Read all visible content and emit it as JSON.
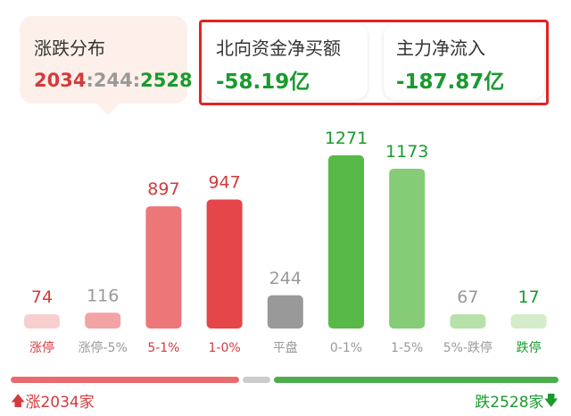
{
  "distribution": {
    "title": "涨跌分布",
    "up": "2034",
    "flat": "244",
    "down": "2528",
    "sep": ":"
  },
  "northbound": {
    "label": "北向资金净买额",
    "value": "-58.19亿"
  },
  "main_flow": {
    "label": "主力净流入",
    "value": "-187.87亿"
  },
  "chart_data": {
    "type": "bar",
    "categories": [
      "涨停",
      "涨停-5%",
      "5-1%",
      "1-0%",
      "平盘",
      "0-1%",
      "1-5%",
      "5%-跌停",
      "跌停"
    ],
    "values": [
      74,
      116,
      897,
      947,
      244,
      1271,
      1173,
      67,
      17
    ],
    "value_labels": [
      "74",
      "116",
      "897",
      "947",
      "244",
      "1271",
      "1173",
      "67",
      "17"
    ],
    "colors": [
      "#f8cfcf",
      "#f2a3a3",
      "#ec7678",
      "#e4464a",
      "#999999",
      "#58b848",
      "#86cc77",
      "#b6e1ab",
      "#d3ecc9"
    ],
    "label_colors": [
      "#d6393c",
      "#999999",
      "#d6393c",
      "#d6393c",
      "#999999",
      "#1a9a2e",
      "#1a9a2e",
      "#999999",
      "#1a9a2e"
    ],
    "xlabel_colors": [
      "#d6393c",
      "#999999",
      "#d6393c",
      "#d6393c",
      "#999999",
      "#999999",
      "#999999",
      "#999999",
      "#1a9a2e"
    ],
    "ylim": [
      0,
      1271
    ],
    "title": "",
    "xlabel": "",
    "ylabel": ""
  },
  "summary": {
    "up_label": "涨2034家",
    "down_label": "跌2528家",
    "up_count": 2034,
    "flat_count": 244,
    "down_count": 2528,
    "up_color": "#e96a6d",
    "flat_color": "#cccccc",
    "down_color": "#4cae4f",
    "up_icon": "arrow-up-icon",
    "down_icon": "arrow-down-icon"
  }
}
